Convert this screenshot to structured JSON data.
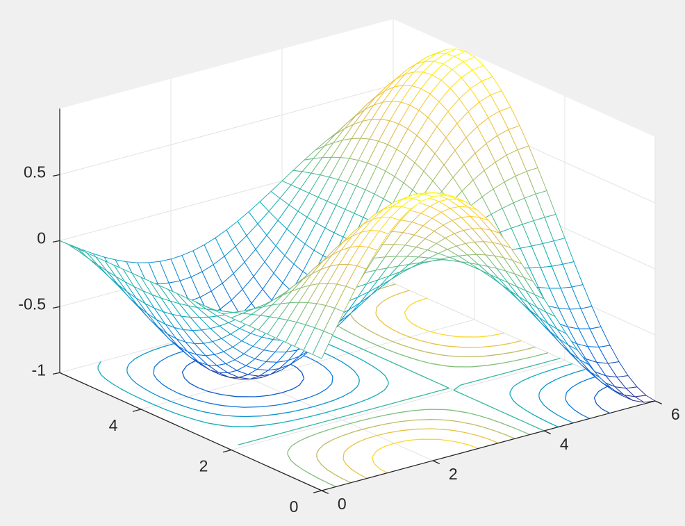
{
  "chart_data": {
    "type": "mesh-with-floor-contour",
    "title": "",
    "xlabel": "",
    "ylabel": "",
    "zlabel": "",
    "xlim": [
      0,
      6
    ],
    "ylim": [
      0,
      5.8
    ],
    "zlim": [
      -1,
      1
    ],
    "x_ticks": [
      "0",
      "2",
      "4",
      "6"
    ],
    "y_ticks": [
      "0",
      "2",
      "4"
    ],
    "z_ticks": [
      "-1",
      "-0.5",
      "0",
      "0.5"
    ],
    "grid": true,
    "surface": {
      "formula": "z = sin(pi*x/4) * cos(pi*y/4.2)",
      "x_step": 0.2,
      "y_step": 0.2
    },
    "contour_levels": [
      -0.8,
      -0.6,
      -0.4,
      -0.2,
      0,
      0.2,
      0.4,
      0.6,
      0.8
    ],
    "colormap": "parula",
    "colors": {
      "figure_background": "#f0f0f0",
      "axes_background": "#ffffff",
      "grid": "#e3e3e3",
      "axis": "#262626",
      "mesh_face": "#ffffff"
    }
  }
}
